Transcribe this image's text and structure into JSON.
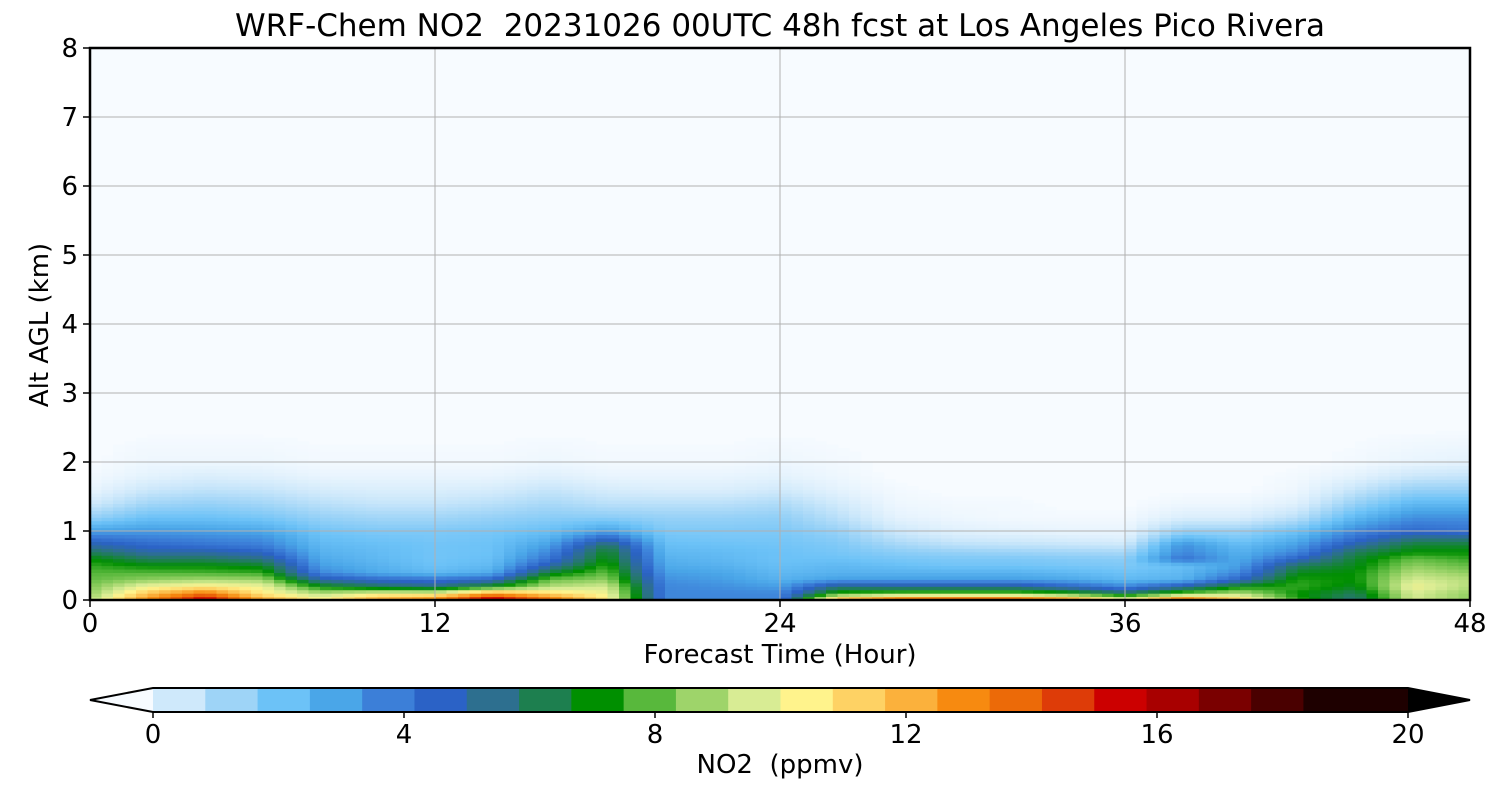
{
  "chart_data": {
    "type": "heatmap",
    "title": "WRF-Chem NO2  20231026 00UTC 48h fcst at Los Angeles Pico Rivera",
    "xlabel": "Forecast Time (Hour)",
    "ylabel": "Alt AGL (km)",
    "xlim": [
      0,
      48
    ],
    "ylim": [
      0,
      8
    ],
    "x_ticks": [
      "0",
      "12",
      "24",
      "36",
      "48"
    ],
    "y_ticks": [
      "0",
      "1",
      "2",
      "3",
      "4",
      "5",
      "6",
      "7",
      "8"
    ],
    "grid": true,
    "x": [
      0,
      2,
      4,
      6,
      8,
      10,
      12,
      14,
      16,
      18,
      20,
      22,
      24,
      26,
      28,
      30,
      32,
      34,
      36,
      38,
      40,
      42,
      44,
      46,
      48
    ],
    "y": [
      0,
      0.1,
      0.2,
      0.3,
      0.4,
      0.5,
      0.6,
      0.7,
      0.8,
      0.9,
      1.0,
      1.2,
      1.4,
      1.6,
      1.8,
      2.0,
      2.5,
      3,
      4,
      5,
      6,
      7,
      8
    ],
    "z": [
      [
        9.5,
        13.5,
        16.5,
        13,
        11,
        13,
        14,
        17,
        14.5,
        11,
        4,
        4,
        4,
        13,
        15,
        15.5,
        15.5,
        14,
        11,
        15,
        12,
        8,
        6,
        10,
        9
      ],
      [
        9.0,
        12.0,
        14.0,
        11,
        9.5,
        10.5,
        10.5,
        13,
        11.5,
        10.5,
        4,
        4,
        4,
        8,
        8.5,
        8.6,
        8.6,
        8.0,
        6.5,
        8.5,
        9.5,
        7.5,
        6.5,
        10,
        9
      ],
      [
        8.8,
        10.5,
        11.0,
        10.5,
        7.5,
        6.5,
        6.0,
        7.5,
        9.5,
        10.0,
        4,
        3.8,
        3.5,
        6.0,
        5.8,
        5.8,
        5.8,
        5.0,
        4.0,
        5.5,
        7.5,
        8.0,
        7.2,
        10.5,
        9.5
      ],
      [
        8.5,
        9.0,
        9.3,
        9.2,
        5.5,
        4.8,
        4.5,
        5.0,
        8.6,
        9.0,
        3.8,
        3.5,
        3.0,
        3.5,
        3.5,
        3.5,
        3.5,
        3.3,
        2.8,
        3.0,
        5.0,
        7.8,
        7.5,
        10.0,
        9.5
      ],
      [
        8.3,
        8.3,
        8.2,
        8.0,
        4.0,
        3.2,
        2.8,
        3.2,
        7.0,
        8.5,
        3.5,
        3.3,
        2.8,
        3.0,
        3.0,
        3.0,
        3.0,
        2.8,
        2.5,
        2.8,
        4.0,
        7.2,
        7.5,
        9.5,
        9.0
      ],
      [
        8.0,
        7.5,
        7.5,
        7.2,
        3.5,
        3.0,
        2.5,
        2.8,
        5.5,
        8.0,
        3.2,
        3.0,
        2.6,
        2.8,
        2.6,
        2.4,
        2.4,
        2.3,
        2.2,
        2.6,
        3.5,
        6.5,
        7.2,
        9.0,
        8.5
      ],
      [
        7.5,
        6.5,
        6.5,
        6.0,
        3.2,
        2.8,
        2.4,
        2.6,
        4.5,
        7.5,
        3.0,
        2.8,
        2.5,
        2.5,
        2.3,
        2.2,
        2.2,
        2.1,
        2.0,
        4.5,
        3.2,
        5.0,
        7.0,
        8.5,
        8.0
      ],
      [
        6.5,
        5.5,
        5.5,
        5.0,
        3.0,
        2.7,
        2.4,
        2.5,
        4.0,
        7.2,
        2.8,
        2.7,
        2.5,
        2.3,
        2.0,
        1.8,
        1.7,
        1.6,
        1.5,
        4.0,
        3.0,
        4.0,
        6.5,
        7.5,
        7.5
      ],
      [
        5.5,
        4.8,
        4.5,
        4.2,
        2.8,
        2.6,
        2.4,
        2.5,
        3.5,
        6.5,
        2.6,
        2.5,
        2.4,
        2.2,
        1.6,
        1.2,
        1.1,
        1.0,
        0.9,
        3.8,
        2.7,
        3.5,
        5.5,
        7.0,
        7.0
      ],
      [
        4.5,
        4.2,
        4.0,
        3.8,
        2.6,
        2.4,
        2.3,
        2.4,
        3.0,
        5.0,
        2.4,
        2.3,
        2.3,
        2.0,
        1.2,
        0.8,
        0.7,
        0.6,
        0.5,
        2.8,
        2.2,
        3.0,
        4.6,
        6.0,
        6.0
      ],
      [
        3.5,
        3.6,
        3.5,
        3.3,
        2.4,
        2.2,
        2.2,
        2.3,
        2.6,
        3.5,
        2.2,
        2.2,
        2.2,
        1.8,
        0.9,
        0.5,
        0.4,
        0.3,
        0.3,
        1.8,
        1.8,
        2.5,
        4.0,
        4.8,
        4.5
      ],
      [
        1.8,
        2.5,
        2.5,
        2.3,
        1.8,
        1.6,
        1.6,
        1.8,
        2.0,
        2.0,
        1.8,
        1.8,
        1.9,
        1.2,
        0.4,
        0.2,
        0.1,
        0.1,
        0.1,
        0.6,
        0.6,
        1.2,
        2.8,
        3.8,
        3.8
      ],
      [
        0.8,
        1.6,
        1.8,
        1.6,
        1.2,
        1.0,
        1.0,
        1.2,
        1.5,
        1.2,
        1.2,
        1.2,
        1.4,
        0.8,
        0.2,
        0.1,
        0.1,
        0.0,
        0.0,
        0.2,
        0.2,
        0.5,
        1.8,
        2.8,
        2.8
      ],
      [
        0.3,
        0.9,
        1.1,
        1.0,
        0.7,
        0.6,
        0.6,
        0.7,
        1.0,
        0.7,
        0.6,
        0.6,
        0.8,
        0.4,
        0.1,
        0.0,
        0.0,
        0.0,
        0.0,
        0.0,
        0.0,
        0.2,
        1.0,
        1.8,
        1.8
      ],
      [
        0.1,
        0.4,
        0.6,
        0.5,
        0.3,
        0.3,
        0.3,
        0.3,
        0.5,
        0.3,
        0.3,
        0.3,
        0.4,
        0.2,
        0.0,
        0.0,
        0.0,
        0.0,
        0.0,
        0.0,
        0.0,
        0.1,
        0.4,
        0.9,
        1.0
      ],
      [
        0.0,
        0.2,
        0.2,
        0.2,
        0.1,
        0.1,
        0.1,
        0.1,
        0.2,
        0.1,
        0.1,
        0.1,
        0.2,
        0.1,
        0.0,
        0.0,
        0.0,
        0.0,
        0.0,
        0.0,
        0.0,
        0.0,
        0.1,
        0.3,
        0.4
      ],
      [
        0,
        0,
        0,
        0,
        0,
        0,
        0,
        0,
        0,
        0,
        0,
        0,
        0,
        0,
        0,
        0,
        0,
        0,
        0,
        0,
        0,
        0,
        0,
        0,
        0
      ],
      [
        0,
        0,
        0,
        0,
        0,
        0,
        0,
        0,
        0,
        0,
        0,
        0,
        0,
        0,
        0,
        0,
        0,
        0,
        0,
        0,
        0,
        0,
        0,
        0,
        0
      ],
      [
        0,
        0,
        0,
        0,
        0,
        0,
        0,
        0,
        0,
        0,
        0,
        0,
        0,
        0,
        0,
        0,
        0,
        0,
        0,
        0,
        0,
        0,
        0,
        0,
        0
      ],
      [
        0,
        0,
        0,
        0,
        0,
        0,
        0,
        0,
        0,
        0,
        0,
        0,
        0,
        0,
        0,
        0,
        0,
        0,
        0,
        0,
        0,
        0,
        0,
        0,
        0
      ],
      [
        0,
        0,
        0,
        0,
        0,
        0,
        0,
        0,
        0,
        0,
        0,
        0,
        0,
        0,
        0,
        0,
        0,
        0,
        0,
        0,
        0,
        0,
        0,
        0,
        0
      ],
      [
        0,
        0,
        0,
        0,
        0,
        0,
        0,
        0,
        0,
        0,
        0,
        0,
        0,
        0,
        0,
        0,
        0,
        0,
        0,
        0,
        0,
        0,
        0,
        0,
        0
      ],
      [
        0,
        0,
        0,
        0,
        0,
        0,
        0,
        0,
        0,
        0,
        0,
        0,
        0,
        0,
        0,
        0,
        0,
        0,
        0,
        0,
        0,
        0,
        0,
        0,
        0
      ]
    ],
    "colorbar": {
      "label": "NO2  (ppmv)",
      "min": 0,
      "max": 20,
      "ticks": [
        "0",
        "4",
        "8",
        "12",
        "16",
        "20"
      ],
      "extend": "both",
      "colors": [
        "#f7fbff",
        "#cfe9fb",
        "#9ed4f7",
        "#6cc2f7",
        "#4aa6e8",
        "#3c7fd8",
        "#2b62c6",
        "#2d6f8f",
        "#1d7f4f",
        "#008f00",
        "#58b83c",
        "#9ed46a",
        "#d8ec94",
        "#fff38c",
        "#fed264",
        "#fbb13c",
        "#f78a10",
        "#ec6a08",
        "#de3c08",
        "#cc0000",
        "#a80000",
        "#7a0000",
        "#4a0000",
        "#1e0000",
        "#000000"
      ]
    }
  }
}
